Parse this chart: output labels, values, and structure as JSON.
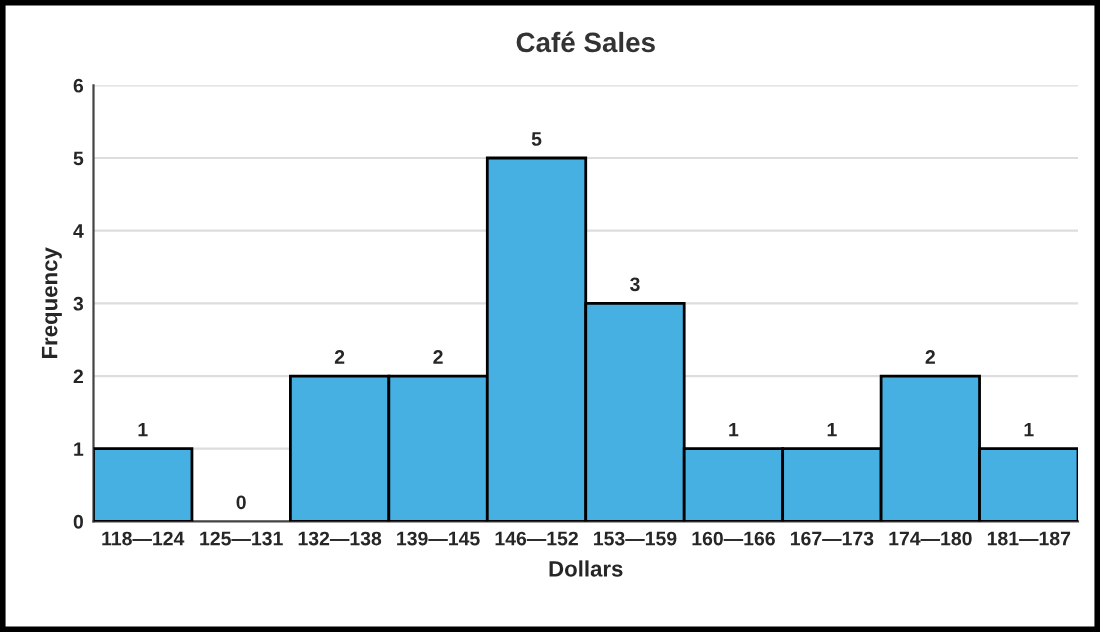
{
  "chart_data": {
    "type": "bar",
    "title": "Café Sales",
    "xlabel": "Dollars",
    "ylabel": "Frequency",
    "categories": [
      "118—124",
      "125—131",
      "132—138",
      "139—145",
      "146—152",
      "153—159",
      "160—166",
      "167—173",
      "174—180",
      "181—187"
    ],
    "values": [
      1,
      0,
      2,
      2,
      5,
      3,
      1,
      1,
      2,
      1
    ],
    "color": "#45b0e1",
    "ylim": [
      0,
      6
    ],
    "yticks": [
      0,
      1,
      2,
      3,
      4,
      5,
      6
    ],
    "grid": "y",
    "data_labels": true
  }
}
